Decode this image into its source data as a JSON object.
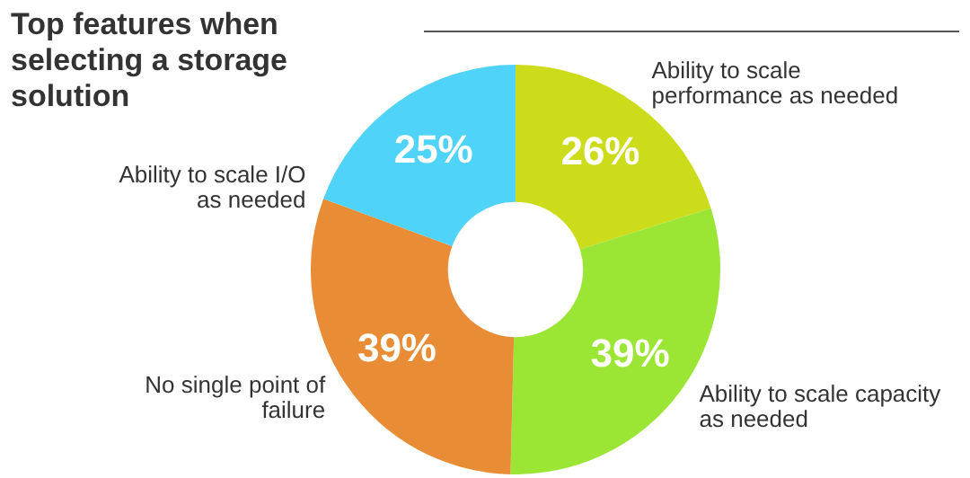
{
  "chart_data": {
    "type": "donut",
    "title": "Top features  when selecting a storage solution",
    "categories": [
      "Ability to scale performance as needed",
      "Ability to scale capacity as needed",
      "No single point of failure",
      "Ability to scale I/O as needed"
    ],
    "values": [
      26,
      39,
      39,
      25
    ],
    "colors": [
      "#cddc1a",
      "#9be535",
      "#e88c35",
      "#4fd3f8"
    ],
    "value_labels": [
      "26%",
      "39%",
      "39%",
      "25%"
    ],
    "legend": false
  }
}
